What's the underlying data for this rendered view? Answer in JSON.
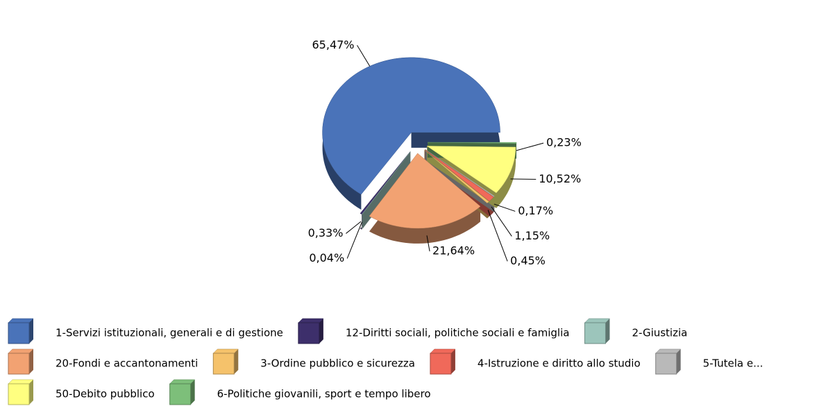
{
  "chart_data": {
    "type": "pie",
    "categories": [
      "1-Servizi istituzionali,  generali e di gestione",
      "12-Diritti sociali, politiche sociali e famiglia",
      "2-Giustizia",
      "20-Fondi e accantonamenti",
      "3-Ordine pubblico e sicurezza",
      "4-Istruzione e diritto allo studio",
      "5-Tutela e...",
      "50-Debito pubblico",
      "6-Politiche giovanili, sport e tempo libero"
    ],
    "values": [
      65.47,
      0.33,
      0.04,
      21.64,
      0.45,
      1.15,
      0.17,
      10.52,
      0.23
    ],
    "value_labels": [
      "65,47%",
      "0,33%",
      "0,04%",
      "21,64%",
      "0,45%",
      "1,15%",
      "0,17%",
      "10,52%",
      "0,23%"
    ],
    "colors": [
      "#4a73b9",
      "#3d2f6b",
      "#9cc5bb",
      "#f2a272",
      "#f5c26b",
      "#f0695a",
      "#b9b9b9",
      "#ffff80",
      "#7dbf7a"
    ],
    "legend": "bottom"
  }
}
